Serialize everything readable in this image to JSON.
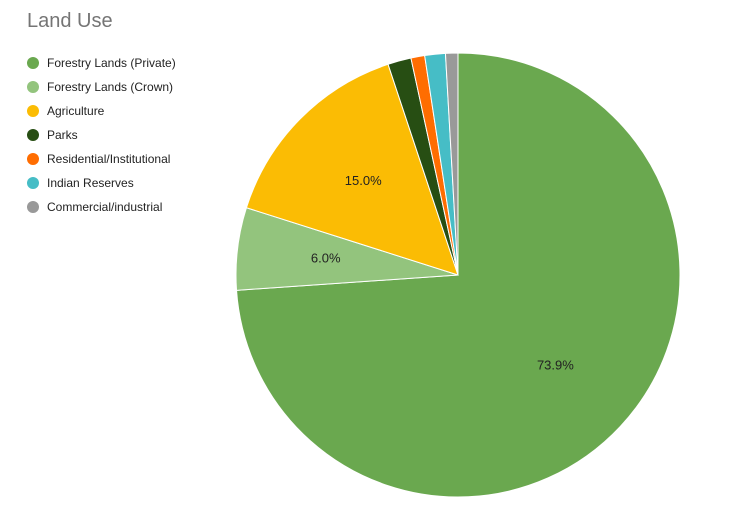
{
  "chart_data": {
    "type": "pie",
    "title": "Land Use",
    "legend_position": "left",
    "slices": [
      {
        "name": "Forestry Lands (Private)",
        "value": 73.9,
        "label": "73.9%",
        "color": "#6aa84f"
      },
      {
        "name": "Forestry Lands (Crown)",
        "value": 6.0,
        "label": "6.0%",
        "color": "#93c47d"
      },
      {
        "name": "Agriculture",
        "value": 15.0,
        "label": "15.0%",
        "color": "#fbbc04"
      },
      {
        "name": "Parks",
        "value": 1.7,
        "label": "",
        "color": "#274e13"
      },
      {
        "name": "Residential/Institutional",
        "value": 1.0,
        "label": "",
        "color": "#ff6d01"
      },
      {
        "name": "Indian Reserves",
        "value": 1.5,
        "label": "",
        "color": "#46bdc6"
      },
      {
        "name": "Commercial/industrial",
        "value": 0.9,
        "label": "",
        "color": "#999999"
      }
    ]
  }
}
